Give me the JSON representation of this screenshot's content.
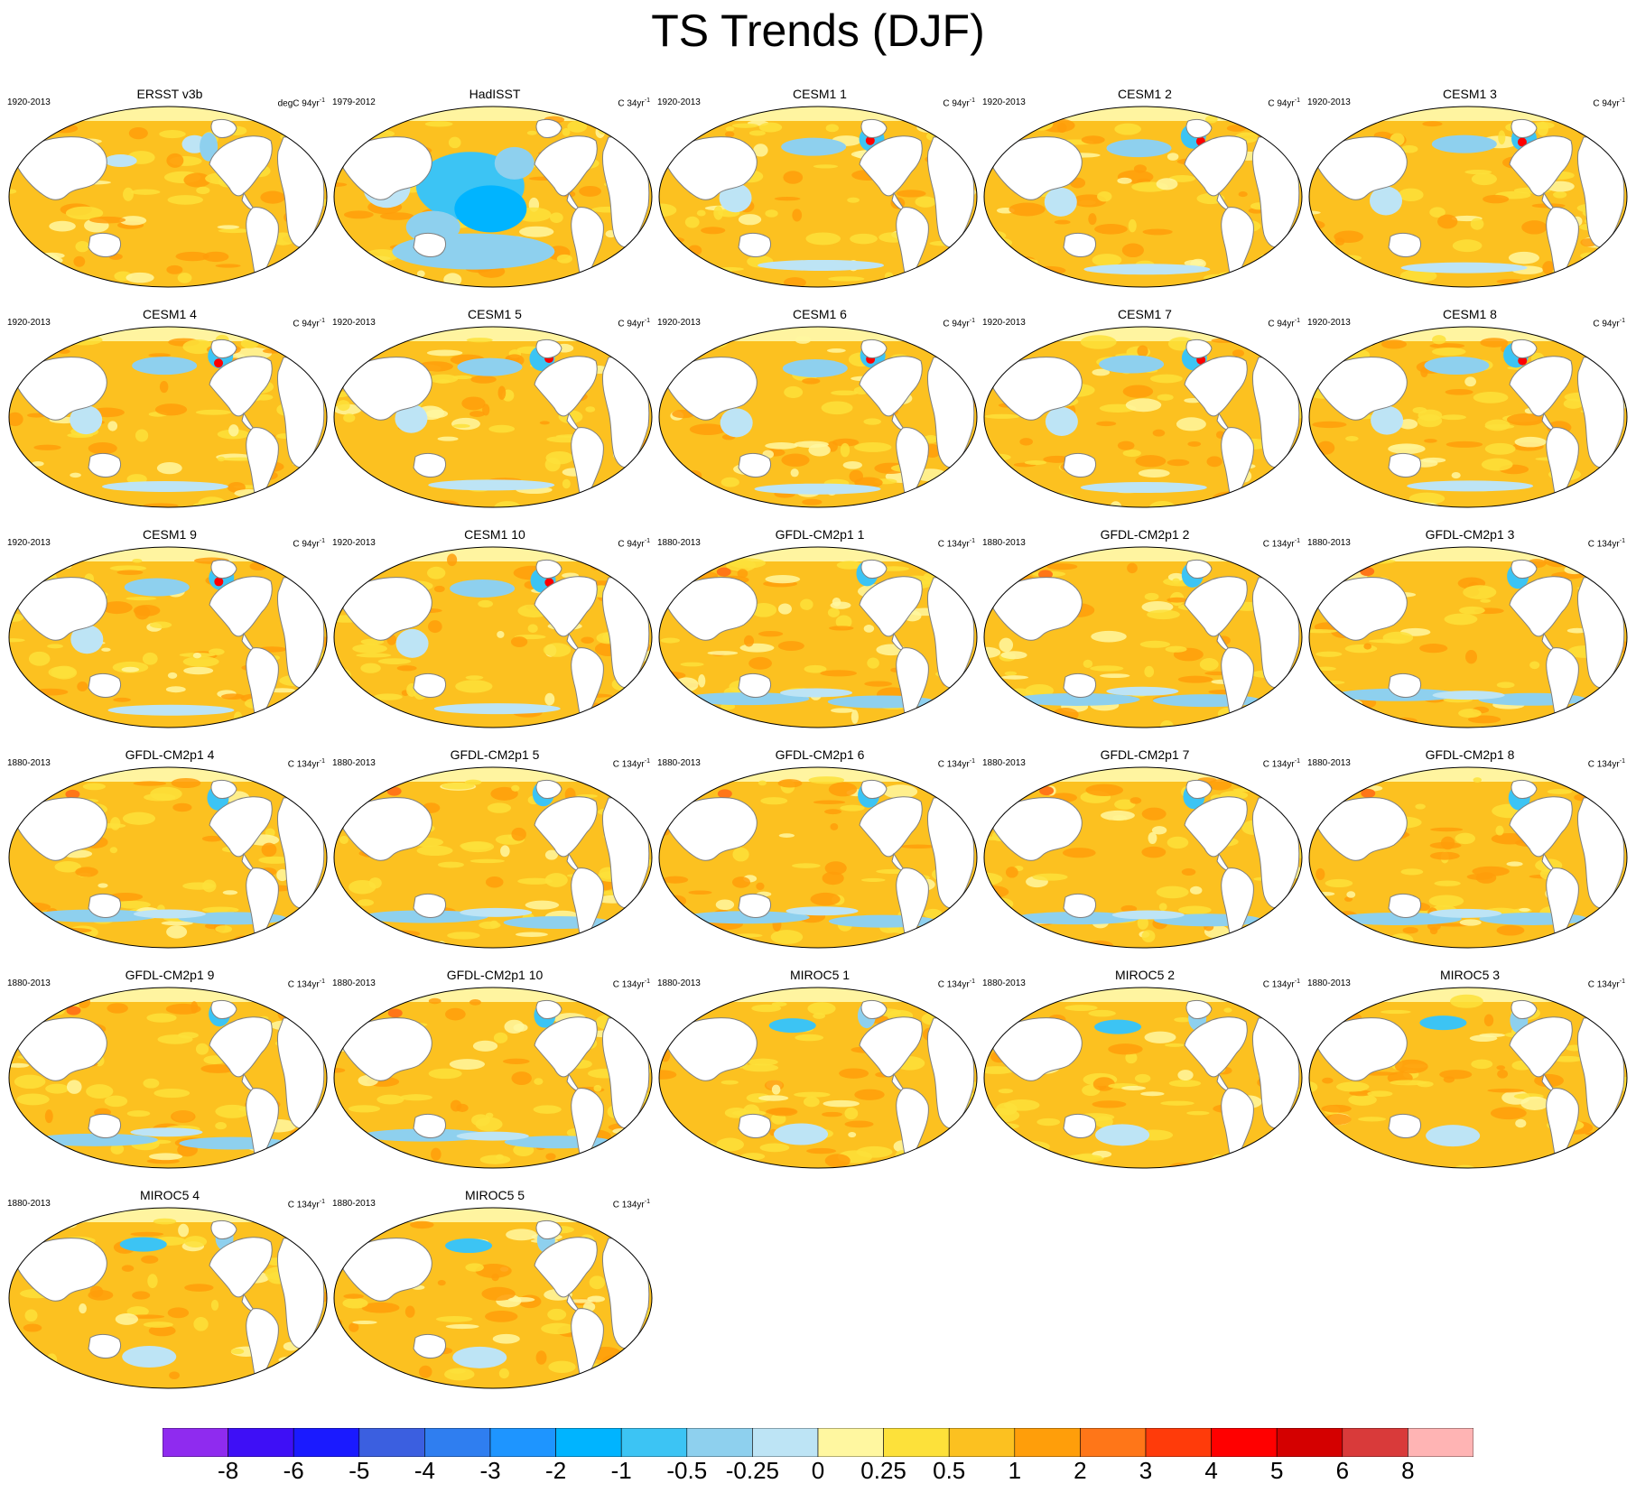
{
  "title": "TS Trends (DJF)",
  "colors": {
    "ocean_base": "#fcc120",
    "land": "#ffffff",
    "arctic_band": "#fff4a0",
    "coast": "#7f7f7f",
    "frame": "#000000"
  },
  "colorbar": {
    "labels": [
      "-8",
      "-6",
      "-5",
      "-4",
      "-3",
      "-2",
      "-1",
      "-0.5",
      "-0.25",
      "0",
      "0.25",
      "0.5",
      "1",
      "2",
      "3",
      "4",
      "5",
      "6",
      "8"
    ],
    "colors": [
      "#8f2bef",
      "#3e0ff6",
      "#1a1aff",
      "#3b5fe0",
      "#2f7ef0",
      "#1e95ff",
      "#00b4ff",
      "#3cc4f4",
      "#8ed0ee",
      "#bde4f5",
      "#fff7a0",
      "#fde13a",
      "#fcc120",
      "#ff9e0a",
      "#ff7618",
      "#ff3b0a",
      "#ff0000",
      "#d40000",
      "#d93a3a",
      "#ffb4b4"
    ]
  },
  "panels": [
    {
      "title": "ERSST v3b",
      "period": "1920-2013",
      "units": "degC 94yr",
      "units_sup": "-1",
      "pattern": "obs",
      "seed": 1
    },
    {
      "title": "HadISST",
      "period": "1979-2012",
      "units": "C 34yr",
      "units_sup": "-1",
      "pattern": "hadisst",
      "seed": 2
    },
    {
      "title": "CESM1 1",
      "period": "1920-2013",
      "units": "C 94yr",
      "units_sup": "-1",
      "pattern": "cesm",
      "seed": 3
    },
    {
      "title": "CESM1 2",
      "period": "1920-2013",
      "units": "C 94yr",
      "units_sup": "-1",
      "pattern": "cesm",
      "seed": 4
    },
    {
      "title": "CESM1 3",
      "period": "1920-2013",
      "units": "C 94yr",
      "units_sup": "-1",
      "pattern": "cesm",
      "seed": 5
    },
    {
      "title": "CESM1 4",
      "period": "1920-2013",
      "units": "C 94yr",
      "units_sup": "-1",
      "pattern": "cesm",
      "seed": 6
    },
    {
      "title": "CESM1 5",
      "period": "1920-2013",
      "units": "C 94yr",
      "units_sup": "-1",
      "pattern": "cesm",
      "seed": 7
    },
    {
      "title": "CESM1 6",
      "period": "1920-2013",
      "units": "C 94yr",
      "units_sup": "-1",
      "pattern": "cesm",
      "seed": 8
    },
    {
      "title": "CESM1 7",
      "period": "1920-2013",
      "units": "C 94yr",
      "units_sup": "-1",
      "pattern": "cesm",
      "seed": 9
    },
    {
      "title": "CESM1 8",
      "period": "1920-2013",
      "units": "C 94yr",
      "units_sup": "-1",
      "pattern": "cesm",
      "seed": 10
    },
    {
      "title": "CESM1 9",
      "period": "1920-2013",
      "units": "C 94yr",
      "units_sup": "-1",
      "pattern": "cesm",
      "seed": 11
    },
    {
      "title": "CESM1 10",
      "period": "1920-2013",
      "units": "C 94yr",
      "units_sup": "-1",
      "pattern": "cesm",
      "seed": 12
    },
    {
      "title": "GFDL-CM2p1 1",
      "period": "1880-2013",
      "units": "C 134yr",
      "units_sup": "-1",
      "pattern": "gfdl",
      "seed": 13
    },
    {
      "title": "GFDL-CM2p1 2",
      "period": "1880-2013",
      "units": "C 134yr",
      "units_sup": "-1",
      "pattern": "gfdl",
      "seed": 14
    },
    {
      "title": "GFDL-CM2p1 3",
      "period": "1880-2013",
      "units": "C 134yr",
      "units_sup": "-1",
      "pattern": "gfdl",
      "seed": 15
    },
    {
      "title": "GFDL-CM2p1 4",
      "period": "1880-2013",
      "units": "C 134yr",
      "units_sup": "-1",
      "pattern": "gfdl",
      "seed": 16
    },
    {
      "title": "GFDL-CM2p1 5",
      "period": "1880-2013",
      "units": "C 134yr",
      "units_sup": "-1",
      "pattern": "gfdl",
      "seed": 17
    },
    {
      "title": "GFDL-CM2p1 6",
      "period": "1880-2013",
      "units": "C 134yr",
      "units_sup": "-1",
      "pattern": "gfdl",
      "seed": 18
    },
    {
      "title": "GFDL-CM2p1 7",
      "period": "1880-2013",
      "units": "C 134yr",
      "units_sup": "-1",
      "pattern": "gfdl",
      "seed": 19
    },
    {
      "title": "GFDL-CM2p1 8",
      "period": "1880-2013",
      "units": "C 134yr",
      "units_sup": "-1",
      "pattern": "gfdl",
      "seed": 20
    },
    {
      "title": "GFDL-CM2p1 9",
      "period": "1880-2013",
      "units": "C 134yr",
      "units_sup": "-1",
      "pattern": "gfdl",
      "seed": 21
    },
    {
      "title": "GFDL-CM2p1 10",
      "period": "1880-2013",
      "units": "C 134yr",
      "units_sup": "-1",
      "pattern": "gfdl",
      "seed": 22
    },
    {
      "title": "MIROC5 1",
      "period": "1880-2013",
      "units": "C 134yr",
      "units_sup": "-1",
      "pattern": "miroc",
      "seed": 23
    },
    {
      "title": "MIROC5 2",
      "period": "1880-2013",
      "units": "C 134yr",
      "units_sup": "-1",
      "pattern": "miroc",
      "seed": 24
    },
    {
      "title": "MIROC5 3",
      "period": "1880-2013",
      "units": "C 134yr",
      "units_sup": "-1",
      "pattern": "miroc",
      "seed": 25
    },
    {
      "title": "MIROC5 4",
      "period": "1880-2013",
      "units": "C 134yr",
      "units_sup": "-1",
      "pattern": "miroc",
      "seed": 26
    },
    {
      "title": "MIROC5 5",
      "period": "1880-2013",
      "units": "C 134yr",
      "units_sup": "-1",
      "pattern": "miroc",
      "seed": 27
    }
  ],
  "chart_data": {
    "type": "heatmap",
    "title": "TS Trends (DJF)",
    "projection": "robinson-like global maps",
    "legend": "horizontal colorbar at bottom",
    "colorbar_levels": [
      -8,
      -6,
      -5,
      -4,
      -3,
      -2,
      -1,
      -0.5,
      -0.25,
      0,
      0.25,
      0.5,
      1,
      2,
      3,
      4,
      5,
      6,
      8
    ]
  }
}
